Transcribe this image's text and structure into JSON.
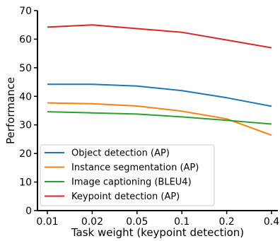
{
  "chart_data": {
    "type": "line",
    "xlabel": "Task weight (keypoint detection)",
    "ylabel": "Performance",
    "categories": [
      "0.01",
      "0.02",
      "0.05",
      "0.1",
      "0.2",
      "0.4"
    ],
    "ylim": [
      0,
      70
    ],
    "yticks": [
      0,
      10,
      20,
      30,
      40,
      50,
      60,
      70
    ],
    "grid": false,
    "legend_position": "bottom-left",
    "series": [
      {
        "name": "Object detection (AP)",
        "color": "#1f77b4",
        "values": [
          44.2,
          44.2,
          43.6,
          42.0,
          39.5,
          36.5
        ]
      },
      {
        "name": "Instance segmentation (AP)",
        "color": "#ff7f0e",
        "values": [
          37.7,
          37.4,
          36.6,
          34.8,
          32.1,
          26.4
        ]
      },
      {
        "name": "Image captioning (BLEU4)",
        "color": "#2ca02c",
        "values": [
          34.6,
          34.2,
          33.8,
          32.8,
          31.6,
          30.3
        ]
      },
      {
        "name": "Keypoint detection (AP)",
        "color": "#d62728",
        "values": [
          64.2,
          65.0,
          63.7,
          62.4,
          59.7,
          57.0
        ]
      }
    ]
  }
}
